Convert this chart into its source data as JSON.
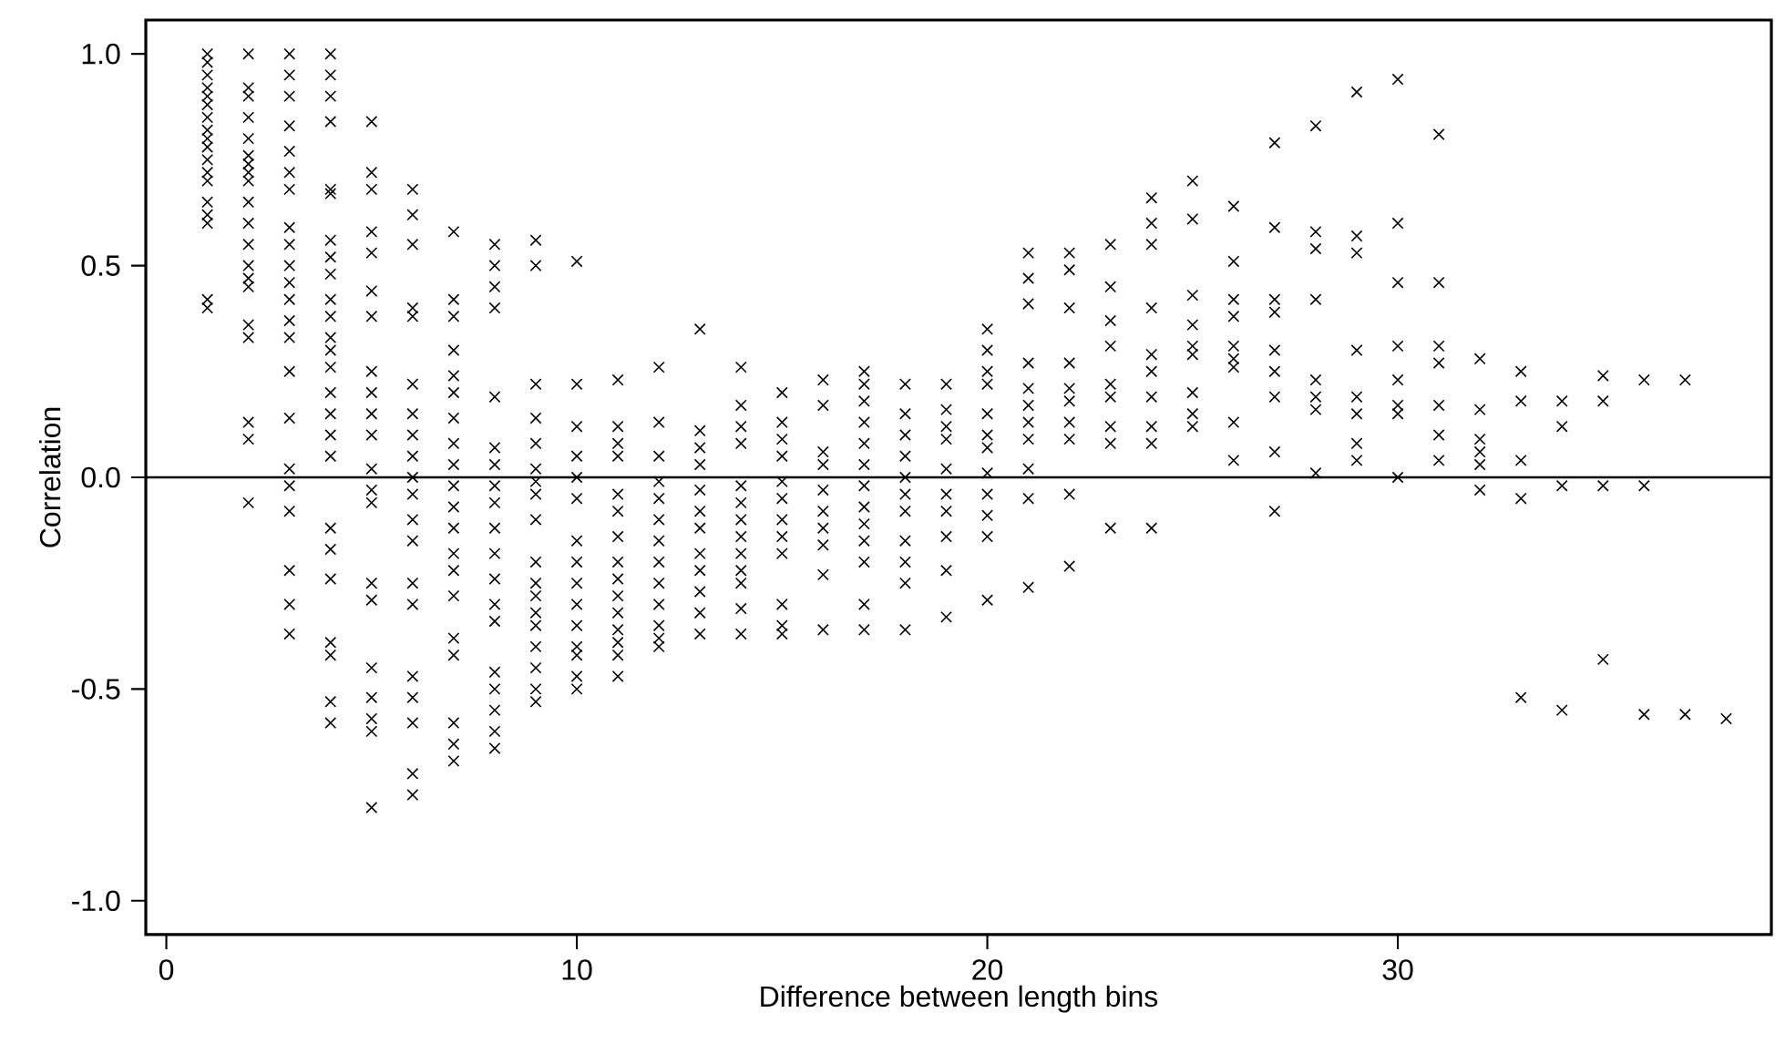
{
  "chart_data": {
    "type": "scatter",
    "xlabel": "Difference between length bins",
    "ylabel": "Correlation",
    "xlim": [
      -0.5,
      39.1
    ],
    "ylim": [
      -1.08,
      1.08
    ],
    "xticks": [
      0,
      10,
      20,
      30
    ],
    "yticks": [
      {
        "value": -1,
        "label": "-1.0"
      },
      {
        "value": -0.5,
        "label": "-0.5"
      },
      {
        "value": 0,
        "label": "0.0"
      },
      {
        "value": 0.5,
        "label": "0.5"
      },
      {
        "value": 1,
        "label": "1.0"
      }
    ],
    "marker": "cross",
    "grid": false,
    "ref_lines": [
      {
        "axis": "y",
        "value": 0
      }
    ],
    "series": [
      {
        "color": "#000000",
        "x": [
          1,
          1,
          1,
          1,
          1,
          1,
          1,
          1,
          1,
          1,
          1,
          1,
          1,
          1,
          1,
          1,
          1,
          1
        ],
        "values": [
          1.0,
          0.98,
          0.95,
          0.92,
          0.9,
          0.88,
          0.85,
          0.82,
          0.8,
          0.78,
          0.75,
          0.72,
          0.7,
          0.65,
          0.62,
          0.6,
          0.42,
          0.4
        ]
      },
      {
        "color": "#000000",
        "x": [
          2,
          2,
          2,
          2,
          2,
          2,
          2,
          2,
          2,
          2,
          2,
          2,
          2,
          2,
          2,
          2,
          2,
          2,
          2,
          2
        ],
        "values": [
          1.0,
          0.92,
          0.9,
          0.85,
          0.8,
          0.76,
          0.74,
          0.72,
          0.7,
          0.65,
          0.6,
          0.55,
          0.5,
          0.47,
          0.45,
          0.36,
          0.33,
          0.13,
          0.09,
          -0.06
        ]
      },
      {
        "color": "#000000",
        "x": [
          3,
          3,
          3,
          3,
          3,
          3,
          3,
          3,
          3,
          3,
          3,
          3,
          3,
          3,
          3,
          3,
          3,
          3,
          3,
          3,
          3,
          3
        ],
        "values": [
          1.0,
          0.95,
          0.9,
          0.83,
          0.77,
          0.72,
          0.68,
          0.59,
          0.55,
          0.5,
          0.46,
          0.42,
          0.37,
          0.33,
          0.25,
          0.14,
          0.02,
          -0.02,
          -0.08,
          -0.22,
          -0.3,
          -0.37
        ]
      },
      {
        "color": "#000000",
        "x": [
          4,
          4,
          4,
          4,
          4,
          4,
          4,
          4,
          4,
          4,
          4,
          4,
          4,
          4,
          4,
          4,
          4,
          4,
          4,
          4,
          4,
          4,
          4,
          4,
          4
        ],
        "values": [
          1.0,
          0.95,
          0.9,
          0.84,
          0.68,
          0.67,
          0.56,
          0.52,
          0.48,
          0.42,
          0.38,
          0.33,
          0.3,
          0.26,
          0.2,
          0.15,
          0.1,
          0.05,
          -0.12,
          -0.17,
          -0.24,
          -0.39,
          -0.42,
          -0.53,
          -0.58
        ]
      },
      {
        "color": "#000000",
        "x": [
          5,
          5,
          5,
          5,
          5,
          5,
          5,
          5,
          5,
          5,
          5,
          5,
          5,
          5,
          5,
          5,
          5,
          5,
          5,
          5,
          5
        ],
        "values": [
          0.84,
          0.72,
          0.68,
          0.58,
          0.53,
          0.44,
          0.38,
          0.25,
          0.2,
          0.15,
          0.1,
          0.02,
          -0.03,
          -0.06,
          -0.25,
          -0.29,
          -0.45,
          -0.52,
          -0.57,
          -0.6,
          -0.78
        ]
      },
      {
        "color": "#000000",
        "x": [
          6,
          6,
          6,
          6,
          6,
          6,
          6,
          6,
          6,
          6,
          6,
          6,
          6,
          6,
          6,
          6,
          6,
          6,
          6,
          6
        ],
        "values": [
          0.68,
          0.62,
          0.55,
          0.4,
          0.38,
          0.22,
          0.15,
          0.1,
          0.05,
          0.0,
          -0.04,
          -0.1,
          -0.15,
          -0.25,
          -0.3,
          -0.47,
          -0.52,
          -0.58,
          -0.7,
          -0.75
        ]
      },
      {
        "color": "#000000",
        "x": [
          7,
          7,
          7,
          7,
          7,
          7,
          7,
          7,
          7,
          7,
          7,
          7,
          7,
          7,
          7,
          7,
          7,
          7,
          7,
          7
        ],
        "values": [
          0.58,
          0.42,
          0.38,
          0.3,
          0.24,
          0.2,
          0.14,
          0.08,
          0.03,
          -0.02,
          -0.07,
          -0.12,
          -0.18,
          -0.22,
          -0.28,
          -0.38,
          -0.42,
          -0.58,
          -0.63,
          -0.67
        ]
      },
      {
        "color": "#000000",
        "x": [
          8,
          8,
          8,
          8,
          8,
          8,
          8,
          8,
          8,
          8,
          8,
          8,
          8,
          8,
          8,
          8,
          8,
          8,
          8
        ],
        "values": [
          0.55,
          0.5,
          0.45,
          0.4,
          0.19,
          0.07,
          0.03,
          -0.02,
          -0.06,
          -0.12,
          -0.18,
          -0.24,
          -0.3,
          -0.34,
          -0.46,
          -0.5,
          -0.55,
          -0.6,
          -0.64
        ]
      },
      {
        "color": "#000000",
        "x": [
          9,
          9,
          9,
          9,
          9,
          9,
          9,
          9,
          9,
          9,
          9,
          9,
          9,
          9,
          9,
          9,
          9,
          9
        ],
        "values": [
          0.56,
          0.5,
          0.22,
          0.14,
          0.08,
          0.02,
          -0.01,
          -0.04,
          -0.1,
          -0.2,
          -0.25,
          -0.28,
          -0.32,
          -0.35,
          -0.4,
          -0.45,
          -0.5,
          -0.53
        ]
      },
      {
        "color": "#000000",
        "x": [
          10,
          10,
          10,
          10,
          10,
          10,
          10,
          10,
          10,
          10,
          10,
          10,
          10,
          10,
          10
        ],
        "values": [
          0.51,
          0.22,
          0.12,
          0.05,
          0.0,
          -0.05,
          -0.15,
          -0.2,
          -0.25,
          -0.3,
          -0.35,
          -0.4,
          -0.42,
          -0.47,
          -0.5
        ]
      },
      {
        "color": "#000000",
        "x": [
          11,
          11,
          11,
          11,
          11,
          11,
          11,
          11,
          11,
          11,
          11,
          11,
          11,
          11,
          11
        ],
        "values": [
          0.23,
          0.12,
          0.08,
          0.05,
          -0.04,
          -0.08,
          -0.14,
          -0.2,
          -0.24,
          -0.28,
          -0.32,
          -0.36,
          -0.39,
          -0.42,
          -0.47
        ]
      },
      {
        "color": "#000000",
        "x": [
          12,
          12,
          12,
          12,
          12,
          12,
          12,
          12,
          12,
          12,
          12,
          12,
          12
        ],
        "values": [
          0.26,
          0.13,
          0.05,
          -0.01,
          -0.05,
          -0.1,
          -0.15,
          -0.2,
          -0.25,
          -0.3,
          -0.35,
          -0.38,
          -0.4
        ]
      },
      {
        "color": "#000000",
        "x": [
          13,
          13,
          13,
          13,
          13,
          13,
          13,
          13,
          13,
          13,
          13,
          13
        ],
        "values": [
          0.35,
          0.11,
          0.07,
          0.03,
          -0.03,
          -0.08,
          -0.12,
          -0.18,
          -0.22,
          -0.27,
          -0.32,
          -0.37
        ]
      },
      {
        "color": "#000000",
        "x": [
          14,
          14,
          14,
          14,
          14,
          14,
          14,
          14,
          14,
          14,
          14,
          14,
          14
        ],
        "values": [
          0.26,
          0.17,
          0.12,
          0.08,
          -0.02,
          -0.06,
          -0.1,
          -0.14,
          -0.18,
          -0.22,
          -0.25,
          -0.31,
          -0.37
        ]
      },
      {
        "color": "#000000",
        "x": [
          15,
          15,
          15,
          15,
          15,
          15,
          15,
          15,
          15,
          15,
          15,
          15
        ],
        "values": [
          0.2,
          0.13,
          0.09,
          0.05,
          -0.01,
          -0.05,
          -0.1,
          -0.14,
          -0.18,
          -0.3,
          -0.35,
          -0.37
        ]
      },
      {
        "color": "#000000",
        "x": [
          16,
          16,
          16,
          16,
          16,
          16,
          16,
          16,
          16,
          16
        ],
        "values": [
          0.23,
          0.17,
          0.06,
          0.03,
          -0.03,
          -0.08,
          -0.12,
          -0.16,
          -0.23,
          -0.36
        ]
      },
      {
        "color": "#000000",
        "x": [
          17,
          17,
          17,
          17,
          17,
          17,
          17,
          17,
          17,
          17,
          17,
          17,
          17
        ],
        "values": [
          0.25,
          0.22,
          0.18,
          0.13,
          0.08,
          0.03,
          -0.02,
          -0.07,
          -0.11,
          -0.15,
          -0.2,
          -0.3,
          -0.36
        ]
      },
      {
        "color": "#000000",
        "x": [
          18,
          18,
          18,
          18,
          18,
          18,
          18,
          18,
          18,
          18,
          18
        ],
        "values": [
          0.22,
          0.15,
          0.1,
          0.05,
          0.0,
          -0.04,
          -0.08,
          -0.15,
          -0.2,
          -0.25,
          -0.36
        ]
      },
      {
        "color": "#000000",
        "x": [
          19,
          19,
          19,
          19,
          19,
          19,
          19,
          19,
          19,
          19
        ],
        "values": [
          0.22,
          0.16,
          0.12,
          0.09,
          0.02,
          -0.04,
          -0.08,
          -0.14,
          -0.22,
          -0.33
        ]
      },
      {
        "color": "#000000",
        "x": [
          20,
          20,
          20,
          20,
          20,
          20,
          20,
          20,
          20,
          20,
          20,
          20
        ],
        "values": [
          0.35,
          0.3,
          0.25,
          0.22,
          0.15,
          0.1,
          0.07,
          0.01,
          -0.04,
          -0.09,
          -0.14,
          -0.29
        ]
      },
      {
        "color": "#000000",
        "x": [
          21,
          21,
          21,
          21,
          21,
          21,
          21,
          21,
          21,
          21,
          21
        ],
        "values": [
          0.53,
          0.47,
          0.41,
          0.27,
          0.21,
          0.17,
          0.13,
          0.09,
          0.02,
          -0.05,
          -0.26
        ]
      },
      {
        "color": "#000000",
        "x": [
          22,
          22,
          22,
          22,
          22,
          22,
          22,
          22,
          22,
          22
        ],
        "values": [
          0.53,
          0.49,
          0.4,
          0.27,
          0.21,
          0.18,
          0.13,
          0.09,
          -0.04,
          -0.21
        ]
      },
      {
        "color": "#000000",
        "x": [
          23,
          23,
          23,
          23,
          23,
          23,
          23,
          23,
          23
        ],
        "values": [
          0.55,
          0.45,
          0.37,
          0.31,
          0.22,
          0.19,
          0.12,
          0.08,
          -0.12
        ]
      },
      {
        "color": "#000000",
        "x": [
          24,
          24,
          24,
          24,
          24,
          24,
          24,
          24,
          24,
          24
        ],
        "values": [
          0.66,
          0.6,
          0.55,
          0.4,
          0.29,
          0.25,
          0.19,
          0.12,
          0.08,
          -0.12
        ]
      },
      {
        "color": "#000000",
        "x": [
          25,
          25,
          25,
          25,
          25,
          25,
          25,
          25,
          25
        ],
        "values": [
          0.7,
          0.61,
          0.43,
          0.36,
          0.31,
          0.29,
          0.2,
          0.15,
          0.12
        ]
      },
      {
        "color": "#000000",
        "x": [
          26,
          26,
          26,
          26,
          26,
          26,
          26,
          26,
          26
        ],
        "values": [
          0.64,
          0.51,
          0.42,
          0.38,
          0.31,
          0.28,
          0.26,
          0.13,
          0.04
        ]
      },
      {
        "color": "#000000",
        "x": [
          27,
          27,
          27,
          27,
          27,
          27,
          27,
          27,
          27
        ],
        "values": [
          0.79,
          0.59,
          0.42,
          0.39,
          0.3,
          0.25,
          0.19,
          0.06,
          -0.08
        ]
      },
      {
        "color": "#000000",
        "x": [
          28,
          28,
          28,
          28,
          28,
          28,
          28,
          28
        ],
        "values": [
          0.83,
          0.58,
          0.54,
          0.42,
          0.23,
          0.19,
          0.16,
          0.01
        ]
      },
      {
        "color": "#000000",
        "x": [
          29,
          29,
          29,
          29,
          29,
          29,
          29,
          29
        ],
        "values": [
          0.91,
          0.57,
          0.53,
          0.3,
          0.19,
          0.15,
          0.08,
          0.04
        ]
      },
      {
        "color": "#000000",
        "x": [
          30,
          30,
          30,
          30,
          30,
          30,
          30,
          30
        ],
        "values": [
          0.94,
          0.6,
          0.46,
          0.31,
          0.23,
          0.17,
          0.15,
          0.0
        ]
      },
      {
        "color": "#000000",
        "x": [
          31,
          31,
          31,
          31,
          31,
          31,
          31
        ],
        "values": [
          0.81,
          0.46,
          0.31,
          0.27,
          0.17,
          0.1,
          0.04
        ]
      },
      {
        "color": "#000000",
        "x": [
          32,
          32,
          32,
          32,
          32,
          32
        ],
        "values": [
          0.28,
          0.16,
          0.09,
          0.06,
          0.03,
          -0.03
        ]
      },
      {
        "color": "#000000",
        "x": [
          33,
          33,
          33,
          33,
          33
        ],
        "values": [
          0.25,
          0.18,
          0.04,
          -0.05,
          -0.52
        ]
      },
      {
        "color": "#000000",
        "x": [
          34,
          34,
          34,
          34
        ],
        "values": [
          0.18,
          0.12,
          -0.02,
          -0.55
        ]
      },
      {
        "color": "#000000",
        "x": [
          35,
          35,
          35,
          35
        ],
        "values": [
          0.24,
          0.18,
          -0.02,
          -0.43
        ]
      },
      {
        "color": "#000000",
        "x": [
          36,
          36,
          36
        ],
        "values": [
          0.23,
          -0.02,
          -0.56
        ]
      },
      {
        "color": "#000000",
        "x": [
          37,
          37
        ],
        "values": [
          0.23,
          -0.56
        ]
      },
      {
        "color": "#000000",
        "x": [
          38
        ],
        "values": [
          -0.57
        ]
      }
    ]
  }
}
